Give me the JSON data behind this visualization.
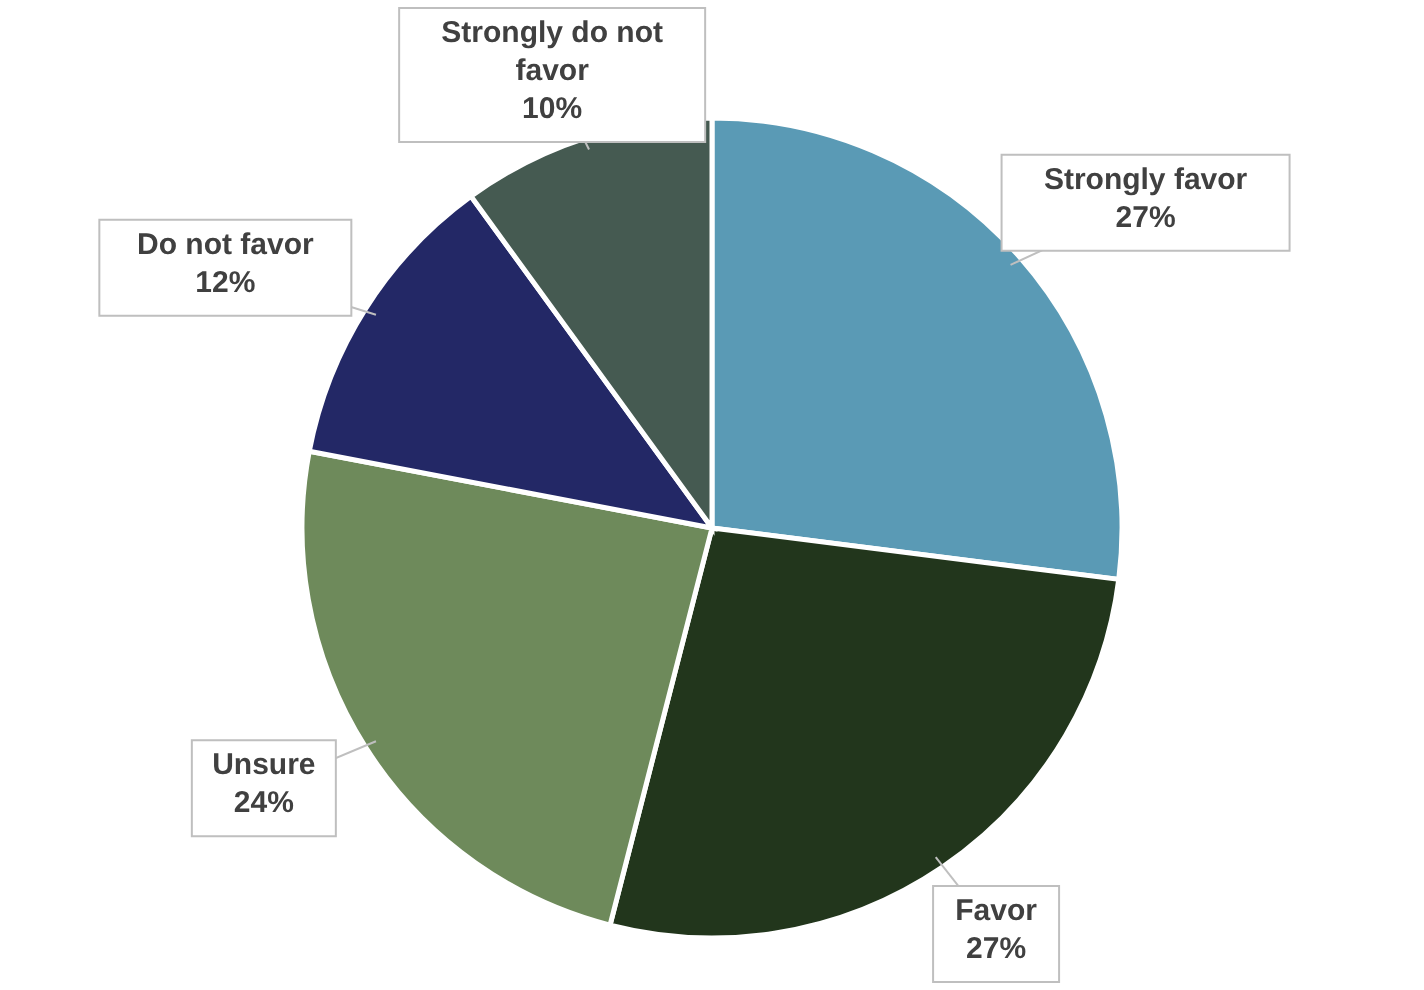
{
  "chart_data": {
    "type": "pie",
    "categories": [
      "Strongly favor",
      "Favor",
      "Unsure",
      "Do not favor",
      "Strongly do not favor"
    ],
    "values": [
      27,
      27,
      24,
      12,
      10
    ],
    "value_labels": [
      "27%",
      "27%",
      "24%",
      "12%",
      "10%"
    ],
    "colors": [
      "#5a9ab5",
      "#22361c",
      "#6e8a5b",
      "#232866",
      "#455a51"
    ]
  }
}
